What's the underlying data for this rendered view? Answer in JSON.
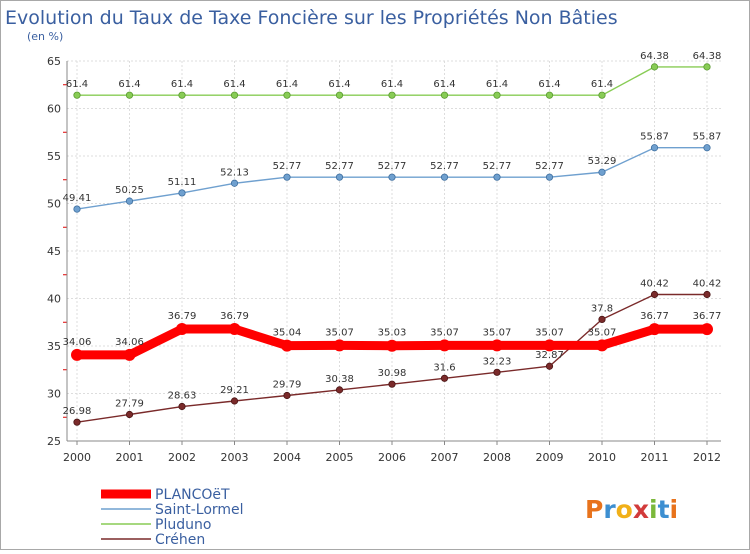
{
  "chart_data": {
    "type": "line",
    "title": "Evolution du Taux de Taxe Foncière sur les Propriétés Non Bâties",
    "subtitle": "(en %)",
    "categories": [
      "2000",
      "2001",
      "2002",
      "2003",
      "2004",
      "2005",
      "2006",
      "2007",
      "2008",
      "2009",
      "2010",
      "2011",
      "2012"
    ],
    "ylim": [
      25,
      65
    ],
    "yticks": [
      25,
      30,
      35,
      40,
      45,
      50,
      55,
      60,
      65
    ],
    "grid": true,
    "legend_position": "bottom-left",
    "series": [
      {
        "name": "PLANCOëT",
        "color": "#ff0000",
        "values": [
          34.06,
          34.06,
          36.79,
          36.79,
          35.04,
          35.07,
          35.03,
          35.07,
          35.07,
          35.07,
          35.07,
          36.77,
          36.77
        ],
        "labels": [
          "34.06",
          "34.06",
          "36.79",
          "36.79",
          "35.04",
          "35.07",
          "35.03",
          "35.07",
          "35.07",
          "35.07",
          "35.07",
          "36.77",
          "36.77"
        ]
      },
      {
        "name": "Saint-Lormel",
        "color": "#6fa0cf",
        "values": [
          49.41,
          50.25,
          51.11,
          52.13,
          52.77,
          52.77,
          52.77,
          52.77,
          52.77,
          52.77,
          53.29,
          55.87,
          55.87
        ],
        "labels": [
          "49.41",
          "50.25",
          "51.11",
          "52.13",
          "52.77",
          "52.77",
          "52.77",
          "52.77",
          "52.77",
          "52.77",
          "53.29",
          "55.87",
          "55.87"
        ]
      },
      {
        "name": "Pluduno",
        "color": "#88cc55",
        "values": [
          61.4,
          61.4,
          61.4,
          61.4,
          61.4,
          61.4,
          61.4,
          61.4,
          61.4,
          61.4,
          61.4,
          64.38,
          64.38
        ],
        "labels": [
          "61.4",
          "61.4",
          "61.4",
          "61.4",
          "61.4",
          "61.4",
          "61.4",
          "61.4",
          "61.4",
          "61.4",
          "61.4",
          "64.38",
          "64.38"
        ]
      },
      {
        "name": "Créhen",
        "color": "#7a2a2a",
        "values": [
          26.98,
          27.79,
          28.63,
          29.21,
          29.79,
          30.38,
          30.98,
          31.6,
          32.23,
          32.87,
          37.8,
          40.42,
          40.42
        ],
        "labels": [
          "26.98",
          "27.79",
          "28.63",
          "29.21",
          "29.79",
          "30.38",
          "30.98",
          "31.6",
          "32.23",
          "32.87",
          "37.8",
          "40.42",
          "40.42"
        ]
      }
    ]
  },
  "logo": {
    "letters": [
      "P",
      "r",
      "o",
      "x",
      "i",
      "t",
      "i"
    ],
    "colors": [
      "#e8731c",
      "#3d8fd1",
      "#f1b019",
      "#d23b3b",
      "#7bb83b",
      "#3d8fd1",
      "#e8731c"
    ]
  }
}
